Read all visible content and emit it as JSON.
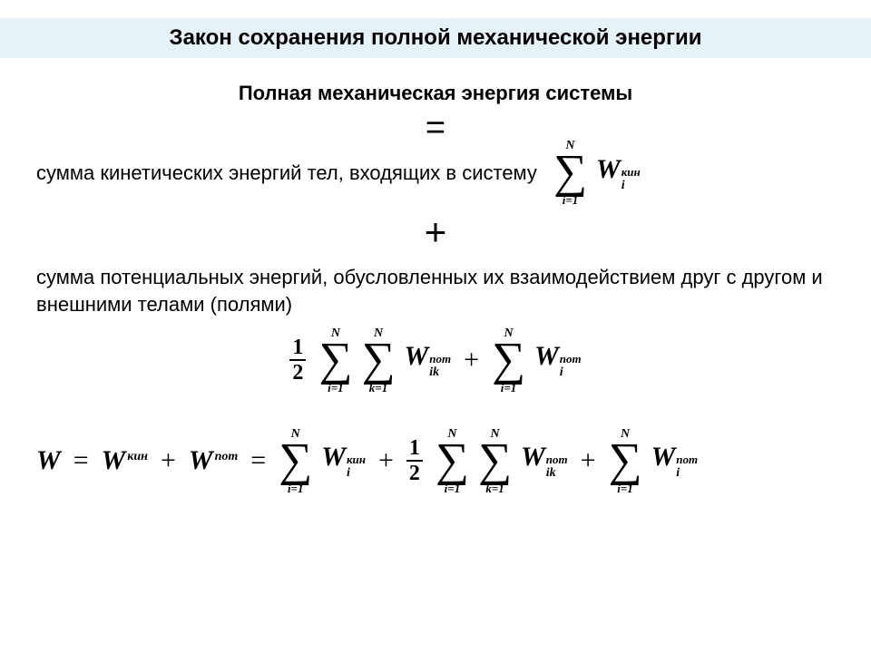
{
  "title": "Закон сохранения полной механической энергии",
  "subtitle": "Полная механическая энергия системы",
  "equals": "=",
  "plus": "+",
  "line_kinetic": "сумма кинетических энергий тел, входящих в систему",
  "line_potential": "сумма потенциальных энергий, обусловленных их взаимодействием друг с другом и внешними телами (полями)",
  "sym": {
    "W": "W",
    "N": "N",
    "sigma": "∑",
    "i": "i",
    "k": "k",
    "ik": "ik",
    "i1": "i=1",
    "k1": "k=1",
    "half_num": "1",
    "half_den": "2",
    "kin": "кин",
    "pot": "пот",
    "eq": "=",
    "plus": "+"
  },
  "colors": {
    "title_bg": "#e5f2f9",
    "text": "#000000",
    "page_bg": "#ffffff"
  },
  "typography": {
    "title_fontsize": 24,
    "subtitle_fontsize": 22,
    "body_fontsize": 22,
    "formula_base_fontsize": 30,
    "sigma_fontsize": 52,
    "script_fontsize": 14,
    "font_body": "Arial",
    "font_math": "Times New Roman"
  }
}
